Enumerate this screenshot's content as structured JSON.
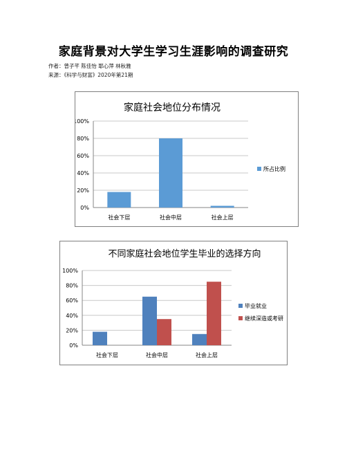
{
  "article": {
    "title": "家庭背景对大学生学习生涯影响的调查研究",
    "authors": "作者：曾子芊 陈佳怡 耶心萍 林秋雅",
    "source": "来源：《科学与财富》2020年第21期"
  },
  "colors": {
    "blue": "#5b9bd5",
    "red": "#c0504d",
    "grid": "#c8c8c8",
    "axis": "#868686"
  },
  "chart_data": [
    {
      "type": "bar",
      "title": "家庭社会地位分布情况",
      "categories": [
        "社会下层",
        "社会中层",
        "社会上层"
      ],
      "series": [
        {
          "name": "所占比例",
          "values": [
            18,
            80,
            2
          ],
          "color": "#5b9bd5"
        }
      ],
      "yticks": [
        "0%",
        "20%",
        "40%",
        "60%",
        "80%",
        "100%"
      ],
      "ylim": [
        0,
        100
      ],
      "grid": true,
      "legend": "right"
    },
    {
      "type": "bar",
      "title": "不同家庭社会地位学生毕业的选择方向",
      "categories": [
        "社会下层",
        "社会中层",
        "社会上层"
      ],
      "series": [
        {
          "name": "毕业就业",
          "values": [
            18,
            65,
            15
          ],
          "color": "#4f81bd"
        },
        {
          "name": "继续深造或考研",
          "values": [
            0,
            35,
            85
          ],
          "color": "#c0504d"
        }
      ],
      "yticks": [
        "0%",
        "20%",
        "40%",
        "60%",
        "80%",
        "100%"
      ],
      "ylim": [
        0,
        100
      ],
      "grid": true,
      "legend": "right"
    }
  ]
}
